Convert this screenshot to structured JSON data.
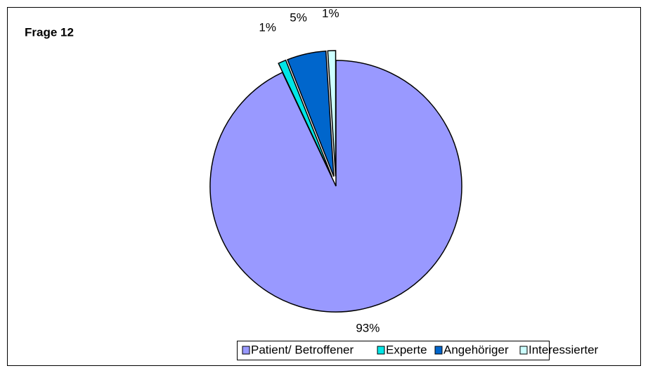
{
  "chart_data": {
    "type": "pie",
    "title": "Frage 12",
    "categories": [
      "Patient/ Betroffener",
      "Experte",
      "Angehöriger",
      "Interessierter"
    ],
    "values": [
      93,
      1,
      5,
      1
    ],
    "value_labels": [
      "93%",
      "1%",
      "5%",
      "1%"
    ],
    "colors": [
      "#9999ff",
      "#00e6e6",
      "#0066cc",
      "#ccffff"
    ],
    "legend": "bottom"
  }
}
